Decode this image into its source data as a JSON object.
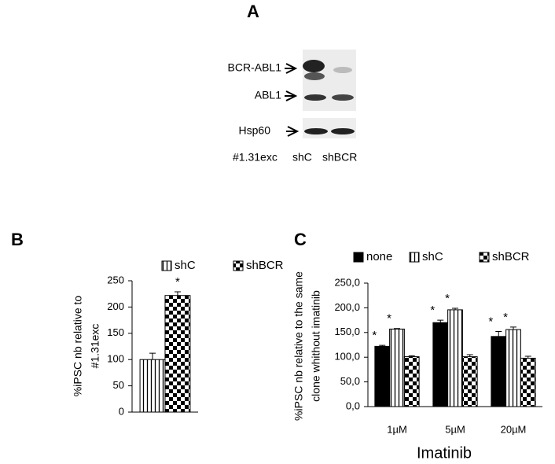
{
  "blot": {
    "panel": "A",
    "bands": [
      "BCR-ABL1",
      "ABL1",
      "Hsp60"
    ],
    "lanes_label": "#1.31exc",
    "lanes": [
      "shC",
      "shBCR"
    ]
  },
  "chart_data": [
    {
      "type": "bar",
      "panel": "B",
      "ylabel": [
        "%iPSC nb relative to",
        "#1.31exc"
      ],
      "categories": [
        null
      ],
      "series": [
        {
          "name": "shC",
          "color": "#000000",
          "pattern": "vertical-stripes",
          "values": [
            100
          ],
          "errors": [
            12
          ],
          "annotations": [
            null
          ]
        },
        {
          "name": "shBCR",
          "color": "#000000",
          "pattern": "checkerboard",
          "values": [
            222
          ],
          "errors": [
            7
          ],
          "annotations": [
            "*"
          ]
        }
      ],
      "ylim": [
        0,
        250
      ],
      "yticks": [
        0,
        50,
        100,
        150,
        200,
        250
      ],
      "grid": false
    },
    {
      "type": "bar",
      "panel": "C",
      "xlabel": "Imatinib",
      "ylabel": [
        "%iPSC nb relative to the same",
        "clone whithout imatinib"
      ],
      "categories": [
        "1µM",
        "5µM",
        "20µM"
      ],
      "series": [
        {
          "name": "none",
          "color": "#000000",
          "pattern": "solid",
          "values": [
            122,
            170,
            142
          ],
          "errors": [
            2,
            5,
            10
          ],
          "annotations": [
            "*",
            "*",
            "*"
          ]
        },
        {
          "name": "shC",
          "color": "#000000",
          "pattern": "vertical-stripes",
          "values": [
            157,
            196,
            156
          ],
          "errors": [
            1,
            3,
            5
          ],
          "annotations": [
            "*",
            "*",
            "*"
          ]
        },
        {
          "name": "shBCR",
          "color": "#000000",
          "pattern": "checkerboard",
          "values": [
            101,
            101,
            98
          ],
          "errors": [
            2,
            4,
            4
          ],
          "annotations": [
            null,
            null,
            null
          ]
        }
      ],
      "ylim": [
        0,
        250
      ],
      "yticks": [
        {
          "value": 0,
          "label": "0,0"
        },
        {
          "value": 50,
          "label": "50,0"
        },
        {
          "value": 100,
          "label": "100,0"
        },
        {
          "value": 150,
          "label": "150,0"
        },
        {
          "value": 200,
          "label": "200,0"
        },
        {
          "value": 250,
          "label": "250,0"
        }
      ],
      "grid": false
    }
  ]
}
